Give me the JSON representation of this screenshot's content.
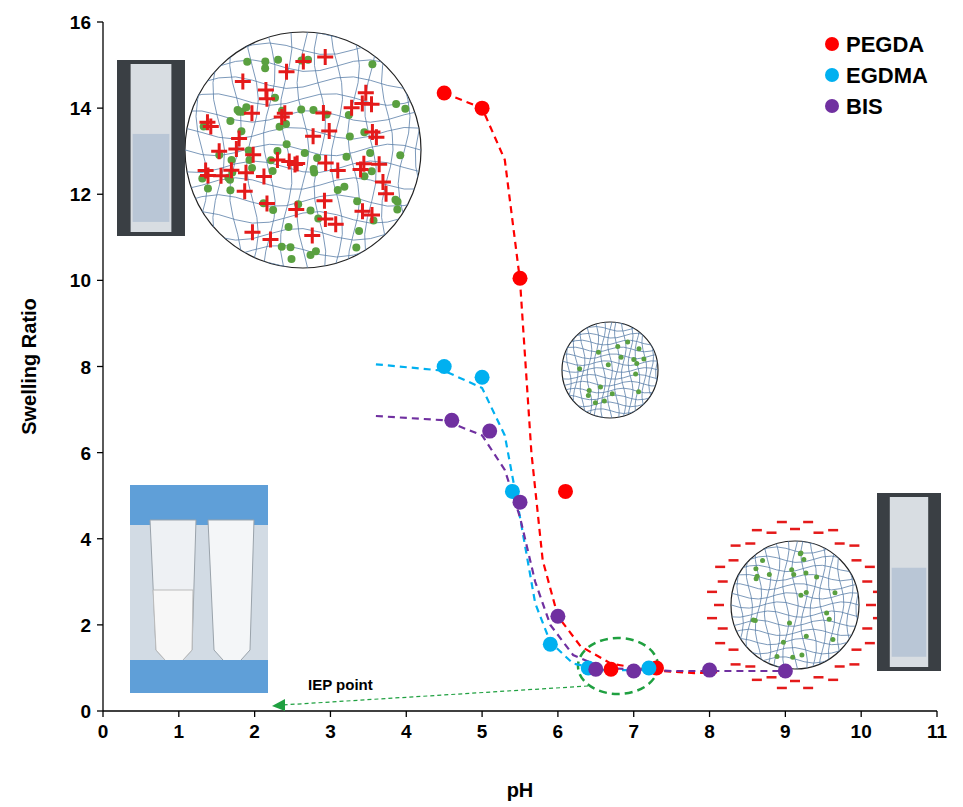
{
  "chart_data": {
    "type": "scatter",
    "x_label": "pH",
    "y_label": "Swelling Ratio",
    "xlim": [
      0,
      11
    ],
    "xticks": [
      0,
      1,
      2,
      3,
      4,
      5,
      6,
      7,
      8,
      9,
      10,
      11
    ],
    "ylim": [
      0,
      16
    ],
    "yticks": [
      0,
      2,
      4,
      6,
      8,
      10,
      12,
      14,
      16
    ],
    "grid": false,
    "legend": "top-right",
    "annotations": [
      "IEP point"
    ],
    "series": [
      {
        "name": "PEGDA",
        "color": "#ff0000",
        "marker": "circle",
        "line_style": "dashed",
        "x": [
          4.5,
          5.0,
          5.5,
          6.1,
          6.7,
          7.3
        ],
        "values": [
          14.35,
          14.0,
          10.05,
          5.1,
          0.97,
          1.0
        ],
        "curve": {
          "x": [
            4.5,
            5.0,
            5.3,
            5.5,
            5.65,
            5.8,
            6.0,
            6.3,
            6.7,
            7.2,
            7.8,
            8.1
          ],
          "values": [
            14.35,
            14.0,
            12.8,
            10.0,
            6.0,
            3.5,
            2.2,
            1.5,
            1.1,
            0.95,
            0.88,
            0.9
          ]
        }
      },
      {
        "name": "EGDMA",
        "color": "#00b0f0",
        "marker": "circle",
        "line_style": "dashed",
        "x": [
          4.5,
          5.0,
          5.4,
          5.9,
          6.4,
          7.2
        ],
        "values": [
          8.0,
          7.75,
          5.1,
          1.55,
          1.0,
          1.0
        ],
        "curve": {
          "x": [
            3.6,
            4.5,
            5.0,
            5.3,
            5.5,
            5.7,
            5.9,
            6.2,
            6.6,
            7.2
          ],
          "values": [
            8.05,
            7.9,
            7.5,
            6.4,
            4.5,
            2.5,
            1.6,
            1.1,
            0.95,
            0.95
          ]
        }
      },
      {
        "name": "BIS",
        "color": "#7030a0",
        "marker": "circle",
        "line_style": "dashed",
        "x": [
          4.6,
          5.1,
          5.5,
          6.0,
          6.5,
          7.0,
          8.0,
          9.0
        ],
        "values": [
          6.75,
          6.5,
          4.85,
          2.2,
          0.97,
          0.93,
          0.95,
          0.93
        ],
        "curve": {
          "x": [
            3.6,
            4.5,
            5.0,
            5.3,
            5.5,
            5.7,
            5.9,
            6.2,
            6.6,
            7.5,
            9.0
          ],
          "values": [
            6.85,
            6.75,
            6.4,
            5.6,
            4.5,
            3.0,
            2.0,
            1.3,
            1.0,
            0.93,
            0.93
          ]
        }
      }
    ]
  }
}
